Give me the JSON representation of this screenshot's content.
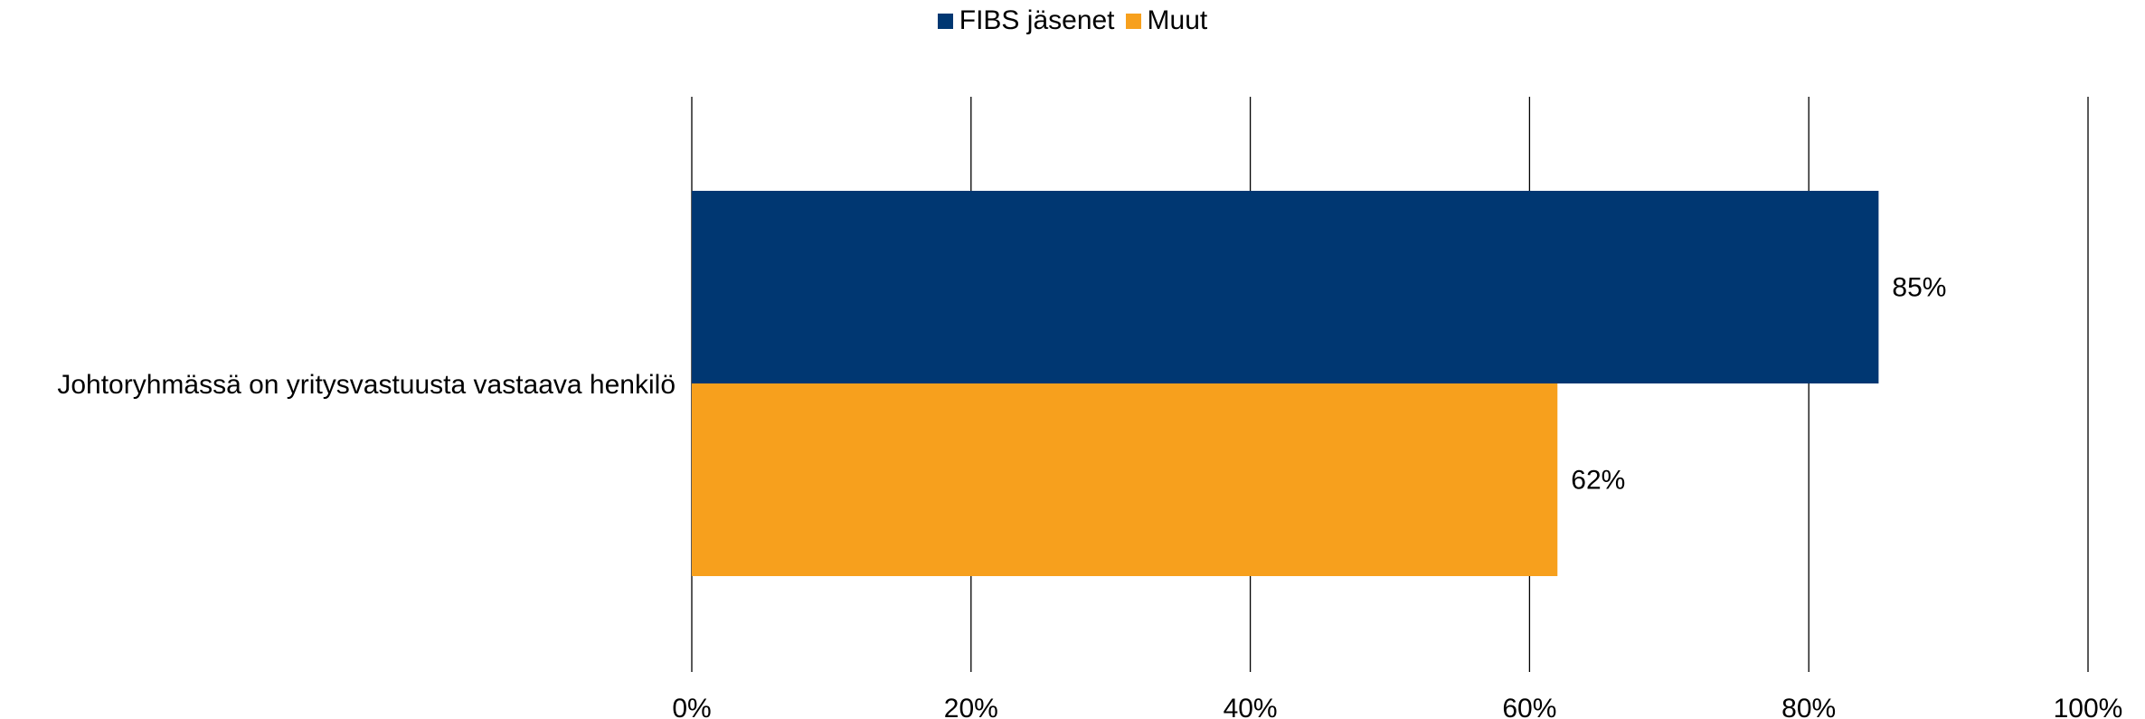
{
  "chart_data": {
    "type": "bar",
    "orientation": "horizontal",
    "categories": [
      "Johtoryhmässä on yritysvastuusta vastaava henkilö"
    ],
    "series": [
      {
        "name": "FIBS jäsenet",
        "values": [
          85
        ],
        "color": "#003772",
        "label": "85%"
      },
      {
        "name": "Muut",
        "values": [
          62
        ],
        "color": "#F7A01D",
        "label": "62%"
      }
    ],
    "xlim": [
      0,
      100
    ],
    "x_ticks": [
      0,
      20,
      40,
      60,
      80,
      100
    ],
    "x_tick_labels": [
      "0%",
      "20%",
      "40%",
      "60%",
      "80%",
      "100%"
    ],
    "grid": true,
    "legend_position": "top-center"
  }
}
